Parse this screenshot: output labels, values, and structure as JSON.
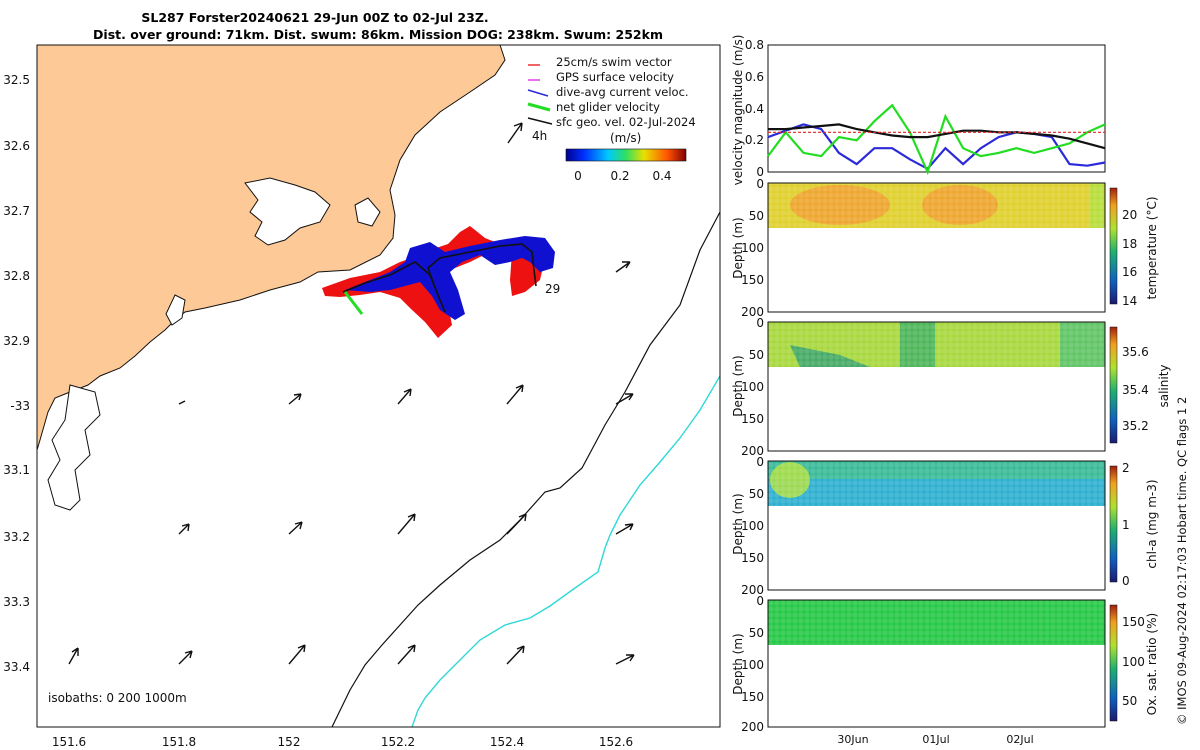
{
  "title": {
    "line1": "SL287 Forster20240621 29-Jun 00Z to 02-Jul 23Z.",
    "line2": "Dist. over ground: 71km. Dist. swum: 86km. Mission DOG: 238km. Swum: 252km"
  },
  "map": {
    "lon_ticks": [
      "151.6",
      "151.8",
      "152",
      "152.2",
      "152.4",
      "152.6"
    ],
    "lat_ticks": [
      "32.5",
      "32.6",
      "32.7",
      "32.8",
      "32.9",
      "-33",
      "33.1",
      "33.2",
      "33.3",
      "33.4"
    ],
    "legend": [
      {
        "label": "25cm/s swim vector",
        "color": "#e8211f"
      },
      {
        "label": "GPS surface velocity",
        "color": "#e033e0"
      },
      {
        "label": "dive-avg current veloc.",
        "color": "#2a2ad8"
      },
      {
        "label": "net glider velocity",
        "color": "#22dd22"
      },
      {
        "label": "sfc geo. vel. 02-Jul-2024",
        "color": "#111111"
      }
    ],
    "time_label": "4h",
    "colorbar": {
      "unit": "(m/s)",
      "ticks": [
        "0",
        "0.2",
        "0.4"
      ]
    },
    "end_label": "29",
    "isobaths_label": "isobaths: 0   200  1000m"
  },
  "panels": {
    "velocity": {
      "ylabel": "velocity magnitude (m/s)",
      "yticks": [
        "0",
        "0.2",
        "0.4",
        "0.6",
        "0.8"
      ]
    },
    "temperature": {
      "ylabel": "Depth (m)",
      "cblabel": "temperature (°C)",
      "cbticks": [
        "14",
        "16",
        "18",
        "20"
      ]
    },
    "salinity": {
      "ylabel": "Depth (m)",
      "cblabel": "salinity",
      "cbticks": [
        "35.2",
        "35.4",
        "35.6"
      ]
    },
    "chla": {
      "ylabel": "Depth (m)",
      "cblabel": "chl-a (mg m-3)",
      "cbticks": [
        "0",
        "1",
        "2"
      ]
    },
    "oxygen": {
      "ylabel": "Depth (m)",
      "cblabel": "Ox. sat. ratio (%)",
      "cbticks": [
        "50",
        "100",
        "150"
      ]
    },
    "depth_ticks": [
      "0",
      "50",
      "100",
      "150",
      "200"
    ],
    "xticks": [
      "30Jun",
      "01Jul",
      "02Jul"
    ]
  },
  "footer": "© IMOS 09-Aug-2024 02:17:03 Hobart time. QC flags 1  2",
  "chart_data": {
    "type": "line",
    "title": "SL287 Forster20240621 29-Jun 00Z to 02-Jul 23Z.",
    "ylabel": "velocity magnitude (m/s)",
    "ylim": [
      0,
      0.8
    ],
    "x_days": [
      0.0,
      0.2,
      0.4,
      0.6,
      0.8,
      1.0,
      1.2,
      1.4,
      1.6,
      1.8,
      2.0,
      2.2,
      2.4,
      2.6,
      2.8,
      3.0,
      3.2,
      3.4,
      3.6,
      3.8
    ],
    "series": [
      {
        "name": "dive-avg current veloc.",
        "color": "#2a2ad8",
        "values": [
          0.22,
          0.26,
          0.3,
          0.27,
          0.12,
          0.05,
          0.15,
          0.15,
          0.08,
          0.02,
          0.15,
          0.05,
          0.15,
          0.22,
          0.25,
          0.24,
          0.22,
          0.05,
          0.04,
          0.06
        ]
      },
      {
        "name": "net glider velocity",
        "color": "#22dd22",
        "values": [
          0.1,
          0.25,
          0.12,
          0.1,
          0.22,
          0.2,
          0.32,
          0.42,
          0.25,
          0.0,
          0.35,
          0.15,
          0.1,
          0.12,
          0.15,
          0.12,
          0.15,
          0.18,
          0.25,
          0.3
        ]
      },
      {
        "name": "sfc geo. vel. 02-Jul-2024",
        "color": "#111111",
        "values": [
          0.27,
          0.27,
          0.28,
          0.29,
          0.3,
          0.27,
          0.25,
          0.23,
          0.22,
          0.22,
          0.24,
          0.26,
          0.26,
          0.25,
          0.25,
          0.24,
          0.23,
          0.21,
          0.18,
          0.15
        ]
      },
      {
        "name": "25cm/s swim vector",
        "color": "#e8211f",
        "values": [
          0.25,
          0.25,
          0.25,
          0.25,
          0.25,
          0.25,
          0.25,
          0.25,
          0.25,
          0.25,
          0.25,
          0.25,
          0.25,
          0.25,
          0.25,
          0.25,
          0.25,
          0.25,
          0.25,
          0.25
        ]
      }
    ]
  }
}
